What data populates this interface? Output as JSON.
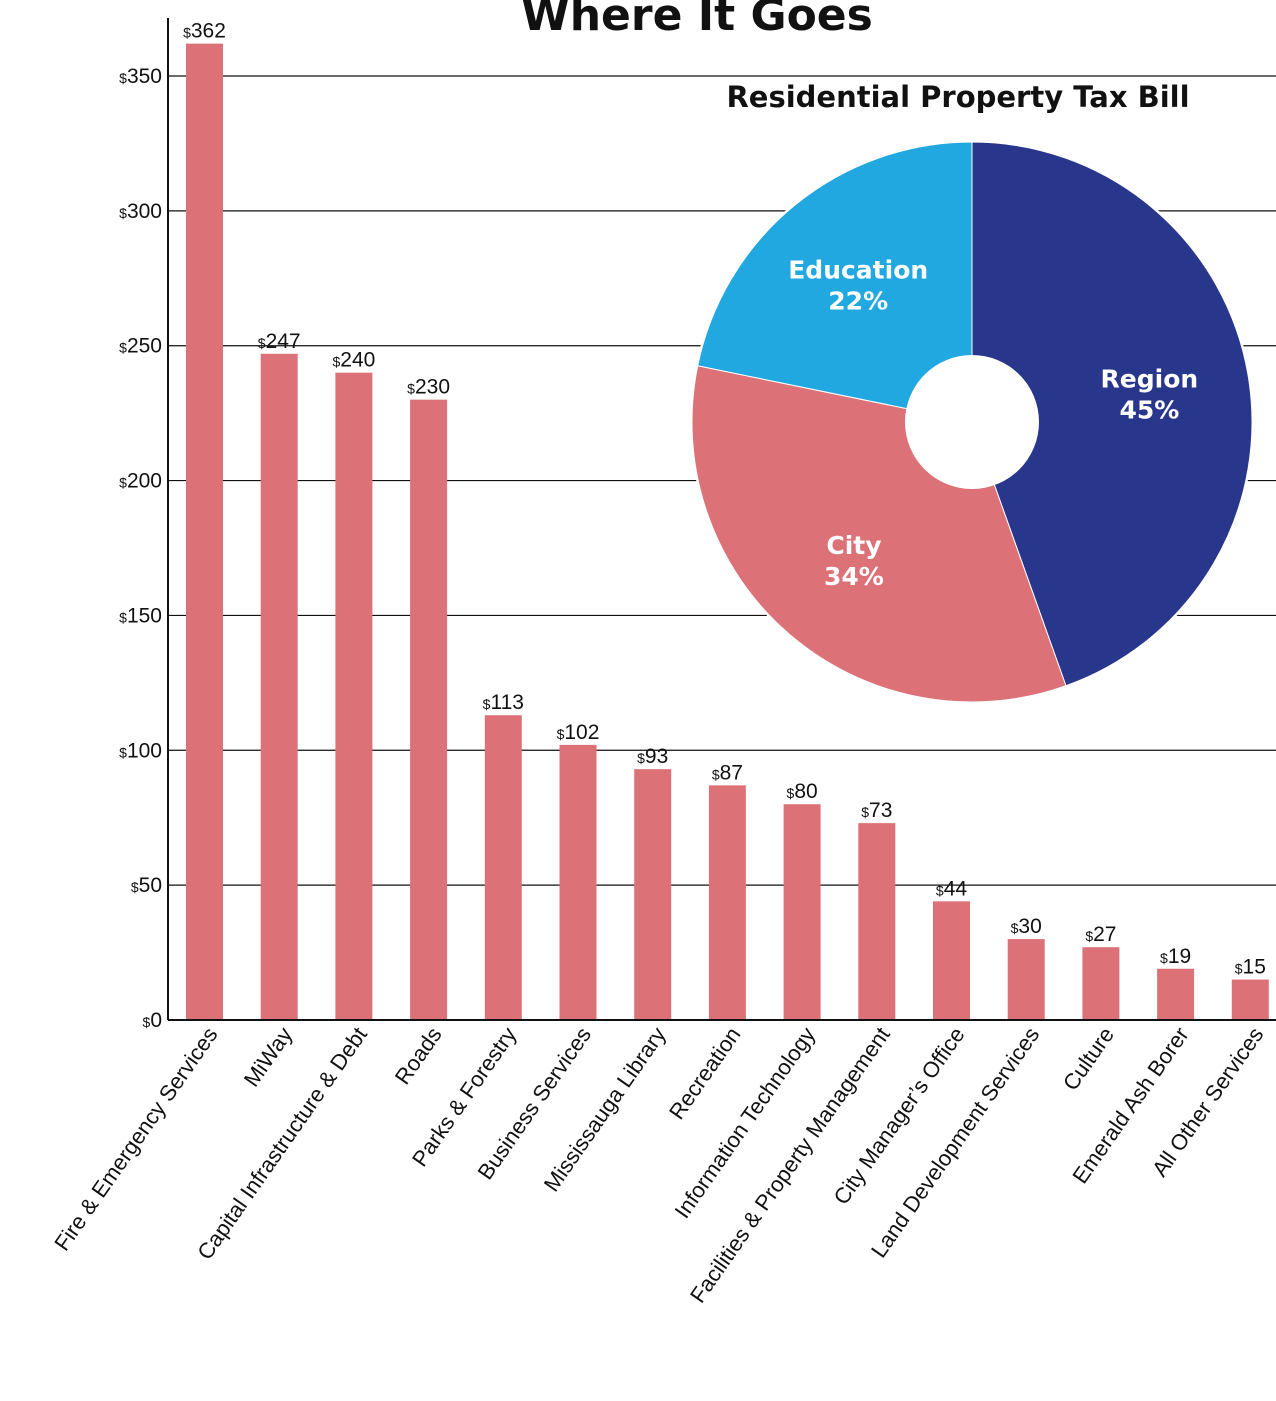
{
  "chart_data": [
    {
      "type": "bar",
      "title": "Where It Goes",
      "currency_symbol": "$",
      "categories": [
        "Fire & Emergency Services",
        "MiWay",
        "Capital Infrastructure & Debt",
        "Roads",
        "Parks & Forestry",
        "Business Services",
        "Mississauga Library",
        "Recreation",
        "Information Technology",
        "Facilities & Property Management",
        "City Manager’s Office",
        "Land Development Services",
        "Culture",
        "Emerald Ash Borer",
        "All Other Services"
      ],
      "values": [
        362,
        247,
        240,
        230,
        113,
        102,
        93,
        87,
        80,
        73,
        44,
        30,
        27,
        19,
        15
      ],
      "ylim": [
        0,
        370
      ],
      "yticks": [
        0,
        50,
        100,
        150,
        200,
        250,
        300,
        350
      ],
      "grid": true,
      "bar_color": "#dc7277"
    },
    {
      "type": "pie",
      "title": "Residential Property Tax Bill",
      "donut": true,
      "slices": [
        {
          "label": "Region",
          "value": 45,
          "value_label": "45%",
          "color": "#28368c"
        },
        {
          "label": "City",
          "value": 34,
          "value_label": "34%",
          "color": "#dc7277"
        },
        {
          "label": "Education",
          "value": 22,
          "value_label": "22%",
          "color": "#22a8e0"
        }
      ]
    }
  ]
}
